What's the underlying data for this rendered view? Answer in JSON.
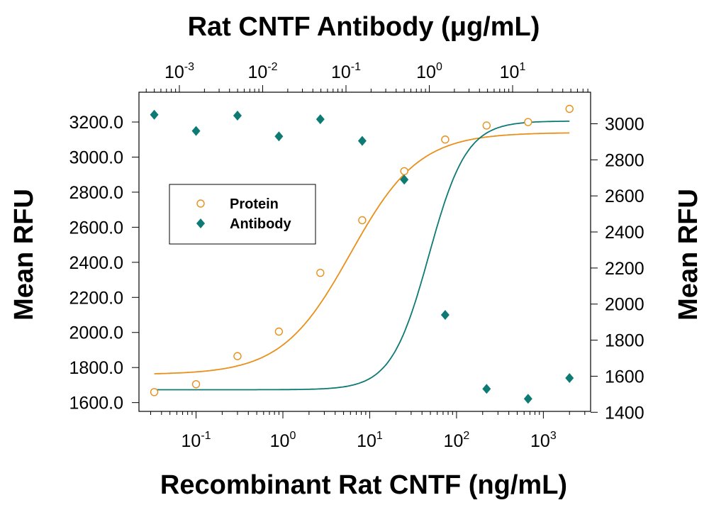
{
  "chart_data": {
    "type": "scatter",
    "title": "Rat CNTF Antibody (μg/mL)",
    "xlabel": "Recombinant Rat CNTF (ng/mL)",
    "ylabel_left": "Mean RFU",
    "ylabel_right": "Mean RFU",
    "x_scale": "log",
    "x_range": [
      0.022,
      3500
    ],
    "top_axis": {
      "label": "Rat CNTF Antibody (μg/mL)",
      "scale": "log",
      "tick_values": [
        0.001,
        0.01,
        0.1,
        1,
        10
      ],
      "tick_labels": [
        {
          "base": "10",
          "exp": "-3"
        },
        {
          "base": "10",
          "exp": "-2"
        },
        {
          "base": "10",
          "exp": "-1"
        },
        {
          "base": "10",
          "exp": "0"
        },
        {
          "base": "10",
          "exp": "1"
        }
      ]
    },
    "bottom_ticks": {
      "tick_values": [
        0.1,
        1,
        10,
        100,
        1000
      ],
      "tick_labels": [
        {
          "base": "10",
          "exp": "-1"
        },
        {
          "base": "10",
          "exp": "0"
        },
        {
          "base": "10",
          "exp": "1"
        },
        {
          "base": "10",
          "exp": "2"
        },
        {
          "base": "10",
          "exp": "3"
        }
      ]
    },
    "y_left": {
      "range": [
        1550,
        3370
      ],
      "ticks": [
        1600,
        1800,
        2000,
        2200,
        2400,
        2600,
        2800,
        3000,
        3200
      ],
      "tick_labels": [
        "1600.0",
        "1800.0",
        "2000.0",
        "2200.0",
        "2400.0",
        "2600.0",
        "2800.0",
        "3000.0",
        "3200.0"
      ]
    },
    "y_right": {
      "range": [
        1405,
        3175
      ],
      "ticks": [
        1400,
        1600,
        1800,
        2000,
        2200,
        2400,
        2600,
        2800,
        3000
      ],
      "tick_labels": [
        "1400",
        "1600",
        "1800",
        "2000",
        "2200",
        "2400",
        "2600",
        "2800",
        "3000"
      ]
    },
    "legend_position": "center-left",
    "series": [
      {
        "name": "Protein",
        "marker": "open-circle",
        "color": "#E8901A",
        "axis": "left",
        "x": [
          0.033,
          0.1,
          0.3,
          0.9,
          2.7,
          8.2,
          25,
          74,
          222,
          667,
          2000
        ],
        "y": [
          1660,
          1705,
          1865,
          2005,
          2340,
          2640,
          2920,
          3100,
          3180,
          3200,
          3275
        ],
        "fit": {
          "bottom": 1760,
          "top": 3140,
          "ec50": 6.0,
          "hill": 1.1
        }
      },
      {
        "name": "Antibody",
        "marker": "filled-diamond",
        "color": "#0E7A74",
        "axis": "right",
        "x": [
          0.033,
          0.1,
          0.3,
          0.9,
          2.7,
          8.2,
          25,
          74,
          222,
          667,
          2000
        ],
        "y": [
          3050,
          2960,
          3045,
          2930,
          3025,
          2905,
          2690,
          1940,
          1530,
          1475,
          1590
        ],
        "fit": {
          "bottom": 1525,
          "top": 3015,
          "ec50": 48,
          "hill": 2.0
        }
      }
    ]
  }
}
